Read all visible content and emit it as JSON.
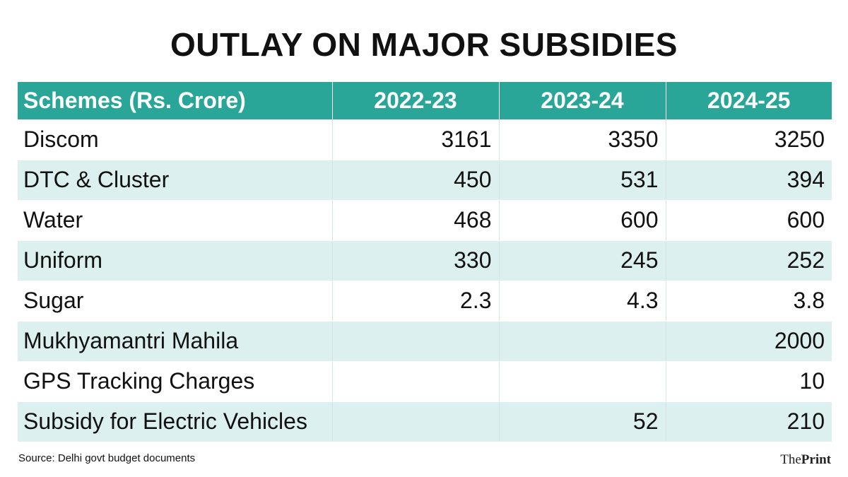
{
  "title": "OUTLAY ON MAJOR SUBSIDIES",
  "table": {
    "headers": [
      "Schemes (Rs. Crore)",
      "2022-23",
      "2023-24",
      "2024-25"
    ],
    "rows": [
      {
        "scheme": "Discom",
        "y2022_23": "3161",
        "y2023_24": "3350",
        "y2024_25": "3250"
      },
      {
        "scheme": "DTC & Cluster",
        "y2022_23": "450",
        "y2023_24": "531",
        "y2024_25": "394"
      },
      {
        "scheme": "Water",
        "y2022_23": "468",
        "y2023_24": "600",
        "y2024_25": "600"
      },
      {
        "scheme": "Uniform",
        "y2022_23": "330",
        "y2023_24": "245",
        "y2024_25": "252"
      },
      {
        "scheme": "Sugar",
        "y2022_23": "2.3",
        "y2023_24": "4.3",
        "y2024_25": "3.8"
      },
      {
        "scheme": "Mukhyamantri Mahila",
        "y2022_23": "",
        "y2023_24": "",
        "y2024_25": "2000"
      },
      {
        "scheme": "GPS Tracking Charges",
        "y2022_23": "",
        "y2023_24": "",
        "y2024_25": "10"
      },
      {
        "scheme": "Subsidy for Electric Vehicles",
        "y2022_23": "",
        "y2023_24": "52",
        "y2024_25": "210"
      }
    ]
  },
  "source": "Source: Delhi govt budget documents",
  "logo": {
    "the": "The",
    "print": "Print"
  },
  "colors": {
    "header_bg": "#2aa699",
    "alt_row_bg": "#dcf0f0"
  }
}
